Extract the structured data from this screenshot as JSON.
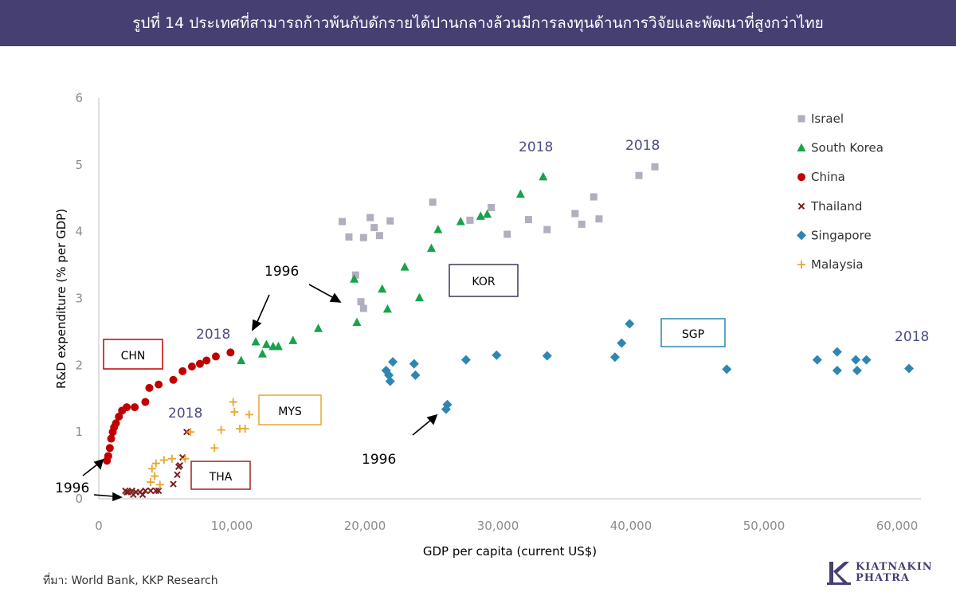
{
  "title": "รูปที่ 14 ประเทศที่สามารถก้าวพ้นกับดักรายได้ปานกลางล้วนมีการลงทุนด้านการวิจัยและพัฒนาที่สูงกว่าไทย",
  "source": "ที่มา: World Bank, KKP Research",
  "logo": {
    "line1": "KIATNAKIN",
    "line2": "PHATRA"
  },
  "chart_data": {
    "type": "scatter",
    "xlabel": "GDP per capita (current US$)",
    "ylabel": "R&D expenditure (% per GDP)",
    "xlim": [
      0,
      60000
    ],
    "ylim": [
      0,
      6
    ],
    "xticks": [
      0,
      10000,
      20000,
      30000,
      40000,
      50000,
      60000
    ],
    "xtick_labels": [
      "0",
      "10,000",
      "20,000",
      "30,000",
      "40,000",
      "50,000",
      "60,000"
    ],
    "yticks": [
      0,
      1,
      2,
      3,
      4,
      5,
      6
    ],
    "ytick_labels": [
      "0",
      "1",
      "2",
      "3",
      "4",
      "5",
      "6"
    ],
    "grid": false,
    "legend_position": "top-right",
    "series": [
      {
        "name": "Israel",
        "marker": "square",
        "color": "#b0afbd",
        "points": [
          [
            18300,
            4.15
          ],
          [
            18800,
            3.92
          ],
          [
            19300,
            3.35
          ],
          [
            19700,
            2.95
          ],
          [
            19900,
            2.85
          ],
          [
            19900,
            3.91
          ],
          [
            20400,
            4.21
          ],
          [
            20700,
            4.06
          ],
          [
            21100,
            3.94
          ],
          [
            21900,
            4.16
          ],
          [
            25100,
            4.44
          ],
          [
            27900,
            4.17
          ],
          [
            29500,
            4.36
          ],
          [
            30700,
            3.96
          ],
          [
            32300,
            4.18
          ],
          [
            33700,
            4.03
          ],
          [
            35800,
            4.27
          ],
          [
            36300,
            4.11
          ],
          [
            37200,
            4.52
          ],
          [
            37600,
            4.19
          ],
          [
            40600,
            4.84
          ],
          [
            41800,
            4.97
          ]
        ]
      },
      {
        "name": "South Korea",
        "marker": "triangle",
        "color": "#16a34a",
        "points": [
          [
            11800,
            2.35
          ],
          [
            12600,
            2.31
          ],
          [
            12300,
            2.17
          ],
          [
            13100,
            2.28
          ],
          [
            13500,
            2.28
          ],
          [
            14600,
            2.37
          ],
          [
            10700,
            2.07
          ],
          [
            16500,
            2.55
          ],
          [
            19200,
            3.29
          ],
          [
            19400,
            2.64
          ],
          [
            21300,
            3.14
          ],
          [
            21700,
            2.84
          ],
          [
            23000,
            3.47
          ],
          [
            24100,
            3.01
          ],
          [
            25000,
            3.75
          ],
          [
            25500,
            4.03
          ],
          [
            27200,
            4.15
          ],
          [
            28700,
            4.23
          ],
          [
            29200,
            4.26
          ],
          [
            31700,
            4.56
          ],
          [
            33400,
            4.82
          ]
        ]
      },
      {
        "name": "China",
        "marker": "circle",
        "color": "#c00000",
        "points": [
          [
            610,
            0.57
          ],
          [
            710,
            0.64
          ],
          [
            830,
            0.76
          ],
          [
            930,
            0.9
          ],
          [
            1050,
            1.0
          ],
          [
            1150,
            1.07
          ],
          [
            1290,
            1.13
          ],
          [
            1510,
            1.23
          ],
          [
            1750,
            1.32
          ],
          [
            2100,
            1.37
          ],
          [
            2700,
            1.37
          ],
          [
            3500,
            1.45
          ],
          [
            3800,
            1.66
          ],
          [
            4500,
            1.71
          ],
          [
            5600,
            1.78
          ],
          [
            6300,
            1.91
          ],
          [
            7000,
            1.98
          ],
          [
            7600,
            2.02
          ],
          [
            8100,
            2.07
          ],
          [
            8800,
            2.13
          ],
          [
            9900,
            2.19
          ]
        ]
      },
      {
        "name": "Thailand",
        "marker": "x",
        "color": "#7a1f1f",
        "points": [
          [
            2000,
            0.12
          ],
          [
            2100,
            0.1
          ],
          [
            2200,
            0.1
          ],
          [
            2500,
            0.12
          ],
          [
            2600,
            0.06
          ],
          [
            2800,
            0.1
          ],
          [
            3100,
            0.1
          ],
          [
            3300,
            0.06
          ],
          [
            3500,
            0.12
          ],
          [
            3900,
            0.12
          ],
          [
            4300,
            0.12
          ],
          [
            4500,
            0.12
          ],
          [
            5600,
            0.22
          ],
          [
            5900,
            0.36
          ],
          [
            6000,
            0.48
          ],
          [
            6100,
            0.5
          ],
          [
            6300,
            0.62
          ],
          [
            6600,
            1.0
          ]
        ]
      },
      {
        "name": "Singapore",
        "marker": "diamond",
        "color": "#2e86b2",
        "points": [
          [
            21800,
            1.85
          ],
          [
            21900,
            1.76
          ],
          [
            21600,
            1.92
          ],
          [
            22100,
            2.05
          ],
          [
            23700,
            2.02
          ],
          [
            23800,
            1.85
          ],
          [
            26100,
            1.34
          ],
          [
            26200,
            1.41
          ],
          [
            27600,
            2.08
          ],
          [
            29900,
            2.15
          ],
          [
            33700,
            2.14
          ],
          [
            38800,
            2.12
          ],
          [
            39300,
            2.33
          ],
          [
            39900,
            2.62
          ],
          [
            47200,
            1.94
          ],
          [
            54000,
            2.08
          ],
          [
            55500,
            2.2
          ],
          [
            55500,
            1.92
          ],
          [
            56900,
            2.08
          ],
          [
            57000,
            1.92
          ],
          [
            57700,
            2.08
          ],
          [
            60900,
            1.95
          ]
        ]
      },
      {
        "name": "Malaysia",
        "marker": "plus",
        "color": "#e6a530",
        "points": [
          [
            3900,
            0.25
          ],
          [
            4200,
            0.34
          ],
          [
            4000,
            0.45
          ],
          [
            4300,
            0.53
          ],
          [
            4600,
            0.21
          ],
          [
            4900,
            0.58
          ],
          [
            5500,
            0.6
          ],
          [
            6500,
            0.6
          ],
          [
            6900,
            1.0
          ],
          [
            8700,
            0.76
          ],
          [
            9200,
            1.03
          ],
          [
            10600,
            1.05
          ],
          [
            11000,
            1.05
          ],
          [
            10100,
            1.45
          ],
          [
            10200,
            1.3
          ],
          [
            11300,
            1.26
          ]
        ]
      }
    ],
    "annotations": {
      "year_labels": [
        "2018",
        "2018",
        "2018",
        "2018",
        "2018"
      ],
      "start_labels": [
        "1996",
        "1996",
        "1996"
      ],
      "country_boxes": [
        {
          "label": "CHN",
          "color": "#c00000"
        },
        {
          "label": "THA",
          "color": "#a02020"
        },
        {
          "label": "MYS",
          "color": "#e6a530"
        },
        {
          "label": "KOR",
          "color": "#3a3a5a"
        },
        {
          "label": "SGP",
          "color": "#2e86b2"
        }
      ]
    }
  }
}
